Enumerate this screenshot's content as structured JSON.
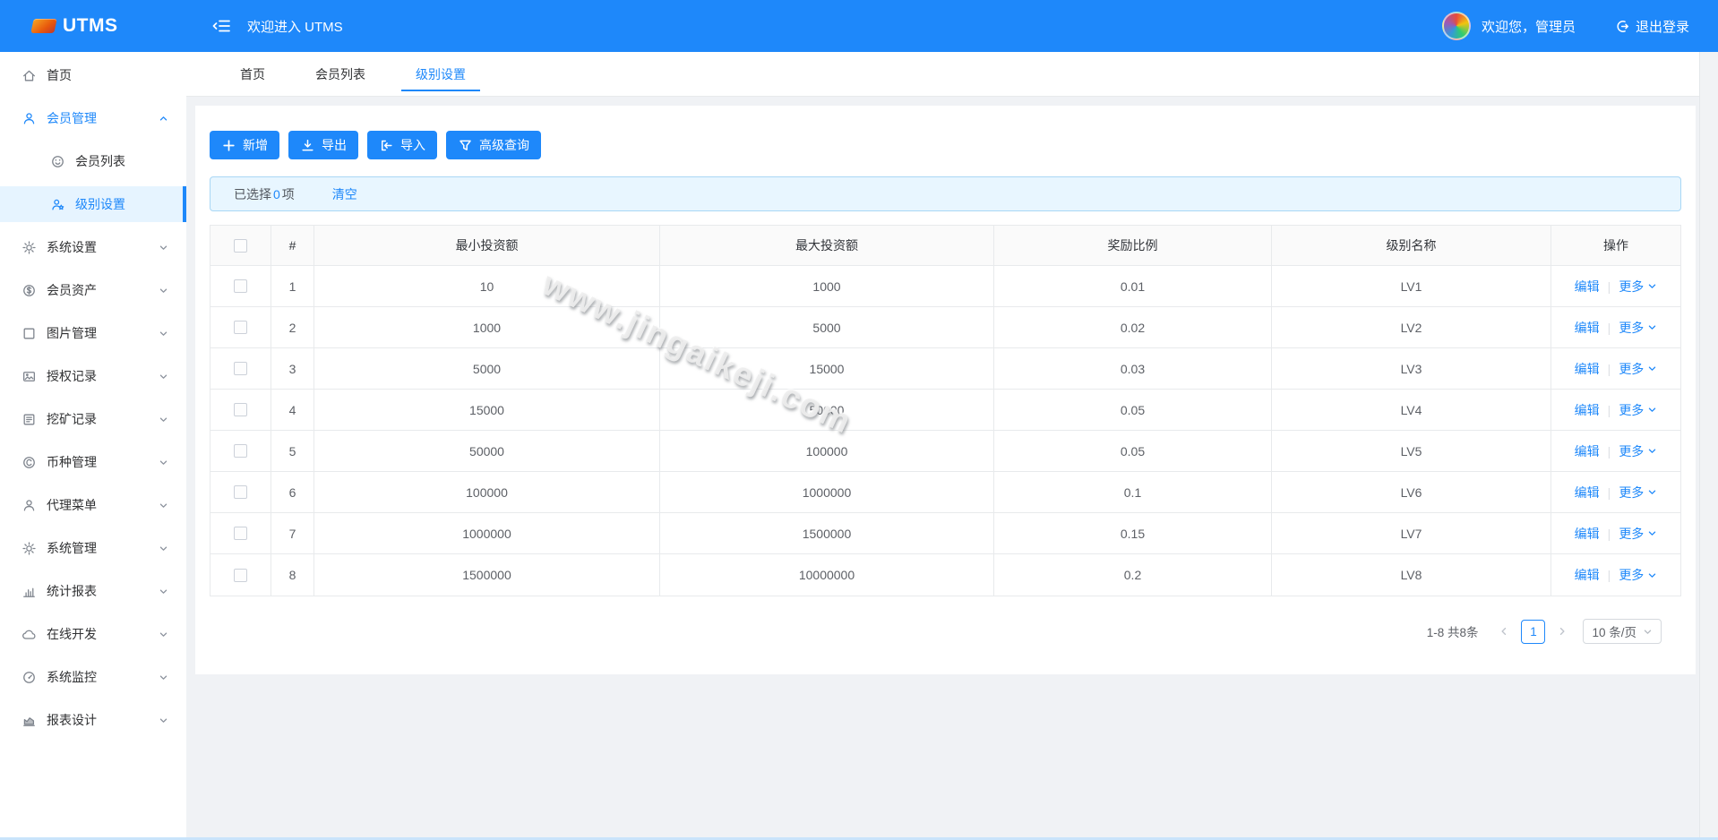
{
  "header": {
    "brand": "UTMS",
    "welcome": "欢迎进入 UTMS",
    "user_greeting": "欢迎您，管理员",
    "logout_label": "退出登录"
  },
  "sidebar": {
    "items": [
      {
        "id": "home",
        "label": "首页",
        "icon": "home-icon"
      },
      {
        "id": "member-mgmt",
        "label": "会员管理",
        "icon": "user-icon",
        "expandable": true,
        "expanded": true,
        "blue": true
      },
      {
        "id": "member-list",
        "label": "会员列表",
        "icon": "smile-icon",
        "sub": true
      },
      {
        "id": "level-settings",
        "label": "级别设置",
        "icon": "user-level-icon",
        "sub": true,
        "active": true,
        "blue": true
      },
      {
        "id": "system-settings",
        "label": "系统设置",
        "icon": "gear-icon",
        "expandable": true
      },
      {
        "id": "member-assets",
        "label": "会员资产",
        "icon": "dollar-icon",
        "expandable": true
      },
      {
        "id": "image-mgmt",
        "label": "图片管理",
        "icon": "square-icon",
        "expandable": true
      },
      {
        "id": "auth-records",
        "label": "授权记录",
        "icon": "image-icon",
        "expandable": true
      },
      {
        "id": "mining-records",
        "label": "挖矿记录",
        "icon": "list-box-icon",
        "expandable": true
      },
      {
        "id": "coin-mgmt",
        "label": "币种管理",
        "icon": "copyright-icon",
        "expandable": true
      },
      {
        "id": "agent-menu",
        "label": "代理菜单",
        "icon": "user-icon",
        "expandable": true
      },
      {
        "id": "system-mgmt",
        "label": "系统管理",
        "icon": "gear-icon",
        "expandable": true
      },
      {
        "id": "stats-report",
        "label": "统计报表",
        "icon": "bar-chart-icon",
        "expandable": true
      },
      {
        "id": "online-dev",
        "label": "在线开发",
        "icon": "cloud-icon",
        "expandable": true
      },
      {
        "id": "system-monitor",
        "label": "系统监控",
        "icon": "dashboard-icon",
        "expandable": true
      },
      {
        "id": "report-design",
        "label": "报表设计",
        "icon": "area-chart-icon",
        "expandable": true
      }
    ]
  },
  "tabs": [
    {
      "id": "home",
      "label": "首页"
    },
    {
      "id": "member-list",
      "label": "会员列表"
    },
    {
      "id": "level-settings",
      "label": "级别设置",
      "active": true
    }
  ],
  "toolbar": {
    "buttons": [
      {
        "id": "add",
        "label": "新增",
        "icon": "plus-icon"
      },
      {
        "id": "export",
        "label": "导出",
        "icon": "download-icon"
      },
      {
        "id": "import",
        "label": "导入",
        "icon": "import-icon"
      },
      {
        "id": "query",
        "label": "高级查询",
        "icon": "filter-icon"
      }
    ]
  },
  "selection_bar": {
    "prefix": "已选择",
    "count": "0",
    "suffix": "项",
    "clear_label": "清空"
  },
  "table": {
    "columns": [
      "#",
      "最小投资额",
      "最大投资额",
      "奖励比例",
      "级别名称",
      "操作"
    ],
    "rows": [
      {
        "index": "1",
        "min": "10",
        "max": "1000",
        "ratio": "0.01",
        "level": "LV1"
      },
      {
        "index": "2",
        "min": "1000",
        "max": "5000",
        "ratio": "0.02",
        "level": "LV2"
      },
      {
        "index": "3",
        "min": "5000",
        "max": "15000",
        "ratio": "0.03",
        "level": "LV3"
      },
      {
        "index": "4",
        "min": "15000",
        "max": "50000",
        "ratio": "0.05",
        "level": "LV4"
      },
      {
        "index": "5",
        "min": "50000",
        "max": "100000",
        "ratio": "0.05",
        "level": "LV5"
      },
      {
        "index": "6",
        "min": "100000",
        "max": "1000000",
        "ratio": "0.1",
        "level": "LV6"
      },
      {
        "index": "7",
        "min": "1000000",
        "max": "1500000",
        "ratio": "0.15",
        "level": "LV7"
      },
      {
        "index": "8",
        "min": "1500000",
        "max": "10000000",
        "ratio": "0.2",
        "level": "LV8"
      }
    ],
    "actions": {
      "edit": "编辑",
      "more": "更多"
    }
  },
  "pagination": {
    "total_text": "1-8 共8条",
    "current_page": "1",
    "page_size": "10 条/页"
  },
  "watermark_text": "www.jingaikeji.com",
  "colors": {
    "primary": "#1e88fa",
    "page_bg": "#f0f2f5",
    "selection_bg": "#e8f6ff",
    "selection_border": "#a9d7f5",
    "table_border": "#e8eaec"
  }
}
